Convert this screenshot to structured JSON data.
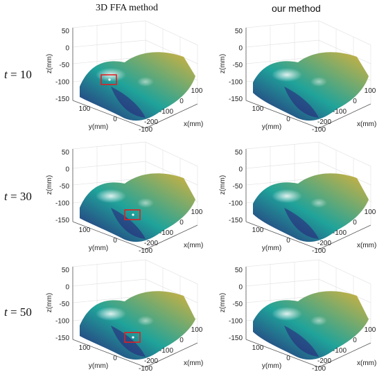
{
  "columns": [
    "3D FFA method",
    "our method"
  ],
  "rows": [
    {
      "label_var": "t",
      "label_rest": " = 10"
    },
    {
      "label_var": "t",
      "label_rest": " = 30"
    },
    {
      "label_var": "t",
      "label_rest": " = 50"
    }
  ],
  "axes": {
    "z_label": "z(mm)",
    "y_label": "y(mm)",
    "x_label": "x(mm)",
    "z_ticks": [
      "50",
      "0",
      "-50",
      "-100",
      "-150"
    ],
    "y_ticks": [
      "100",
      "0",
      "-100"
    ],
    "x_ticks": [
      "100",
      "0",
      "-100",
      "-200"
    ]
  },
  "colors": {
    "surface_low": "#2a1f7a",
    "surface_mid": "#1fa39a",
    "surface_high": "#d9b23a",
    "highlight_box": "#e02020",
    "grid": "#e4e4e4",
    "axis": "#555555"
  },
  "highlights": [
    {
      "row": 0,
      "column": 0,
      "shape": "rectangle"
    },
    {
      "row": 1,
      "column": 0,
      "shape": "rectangle"
    },
    {
      "row": 2,
      "column": 0,
      "shape": "rectangle"
    }
  ]
}
